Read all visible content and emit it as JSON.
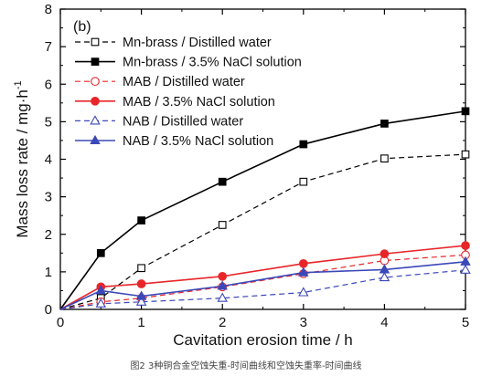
{
  "chart_data": {
    "type": "line",
    "panel_label": "(b)",
    "xlabel": "Cavitation erosion time / h",
    "ylabel": "Mass loss rate / mg·h",
    "ylabel_superscript": "-1",
    "xlim": [
      0,
      5
    ],
    "ylim": [
      0,
      8
    ],
    "x_ticks": [
      0,
      1,
      2,
      3,
      4,
      5
    ],
    "y_ticks": [
      0,
      1,
      2,
      3,
      4,
      5,
      6,
      7,
      8
    ],
    "grid": false,
    "legend_position": "top-left",
    "series": [
      {
        "name": "Mn-brass / Distilled water",
        "color": "#000000",
        "dash": true,
        "marker": "square",
        "filled": false,
        "x": [
          0,
          0.5,
          1,
          2,
          3,
          4,
          5
        ],
        "y": [
          0,
          0.3,
          1.1,
          2.25,
          3.4,
          4.02,
          4.13
        ]
      },
      {
        "name": "Mn-brass / 3.5% NaCl solution",
        "color": "#000000",
        "dash": false,
        "marker": "square",
        "filled": true,
        "x": [
          0,
          0.5,
          1,
          2,
          3,
          4,
          5
        ],
        "y": [
          0,
          1.5,
          2.37,
          3.4,
          4.4,
          4.95,
          5.28
        ]
      },
      {
        "name": "MAB / Distilled water",
        "color": "#e8262a",
        "dash": true,
        "marker": "circle",
        "filled": false,
        "x": [
          0,
          0.5,
          1,
          2,
          3,
          4,
          5
        ],
        "y": [
          0,
          0.2,
          0.3,
          0.6,
          0.95,
          1.3,
          1.45
        ]
      },
      {
        "name": "MAB / 3.5% NaCl solution",
        "color": "#e8262a",
        "dash": false,
        "marker": "circle",
        "filled": true,
        "x": [
          0,
          0.5,
          1,
          2,
          3,
          4,
          5
        ],
        "y": [
          0,
          0.6,
          0.68,
          0.88,
          1.22,
          1.48,
          1.7
        ]
      },
      {
        "name": "NAB / Distilled water",
        "color": "#3b48b8",
        "dash": true,
        "marker": "triangle",
        "filled": false,
        "x": [
          0,
          0.5,
          1,
          2,
          3,
          4,
          5
        ],
        "y": [
          0,
          0.15,
          0.2,
          0.3,
          0.45,
          0.85,
          1.05
        ]
      },
      {
        "name": "NAB / 3.5% NaCl solution",
        "color": "#3b48b8",
        "dash": false,
        "marker": "triangle",
        "filled": true,
        "x": [
          0,
          0.5,
          1,
          2,
          3,
          4,
          5
        ],
        "y": [
          0,
          0.5,
          0.35,
          0.62,
          0.98,
          1.06,
          1.27
        ]
      }
    ]
  },
  "caption": "图2   3种铜合金空蚀失重-时间曲线和空蚀失重率-时间曲线"
}
